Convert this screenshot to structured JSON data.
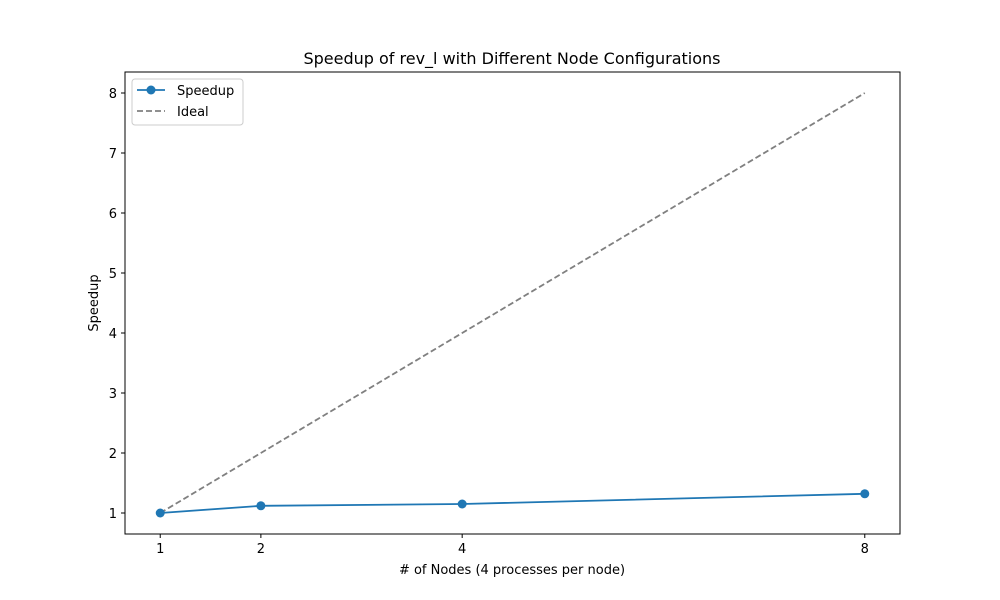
{
  "chart_data": {
    "type": "line",
    "title": "Speedup of rev_l with Different Node Configurations",
    "xlabel": "# of Nodes (4 processes per node)",
    "ylabel": "Speedup",
    "x": [
      1,
      2,
      4,
      8
    ],
    "x_ticks": [
      "1",
      "2",
      "4",
      "8"
    ],
    "y_ticks": [
      "1",
      "2",
      "3",
      "4",
      "5",
      "6",
      "7",
      "8"
    ],
    "xlim": [
      0.65,
      8.35
    ],
    "ylim": [
      0.65,
      8.35
    ],
    "grid": false,
    "legend_position": "top-left",
    "series": [
      {
        "name": "Speedup",
        "values": [
          1.0,
          1.12,
          1.15,
          1.32
        ],
        "color": "#1f77b4",
        "style": "solid",
        "marker": "circle"
      },
      {
        "name": "Ideal",
        "values": [
          1,
          2,
          4,
          8
        ],
        "color": "#808080",
        "style": "dashed",
        "marker": "none"
      }
    ]
  }
}
